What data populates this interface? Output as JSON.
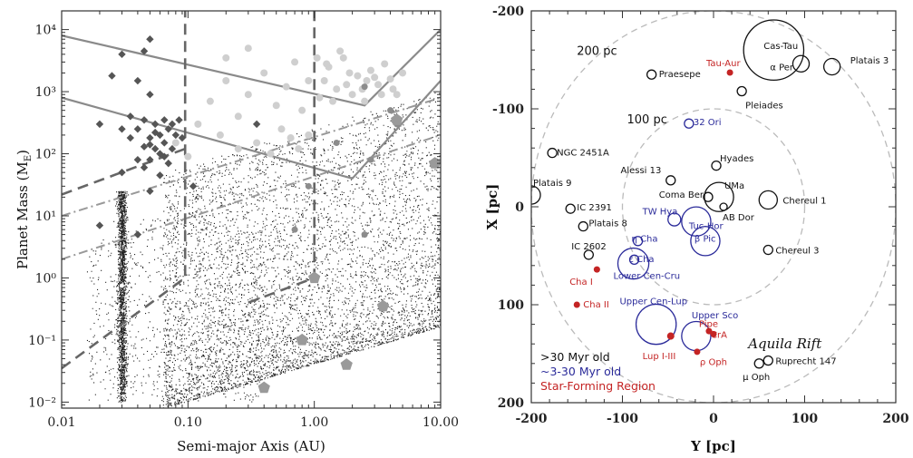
{
  "chart_data": [
    {
      "type": "scatter",
      "xlabel": "Semi-major Axis (AU)",
      "ylabel": "Planet Mass (M_E)",
      "xscale": "log",
      "yscale": "log",
      "xlim": [
        0.01,
        10
      ],
      "ylim": [
        0.008,
        20000
      ],
      "xticks": [
        {
          "v": 0.01,
          "label": "0.01"
        },
        {
          "v": 0.1,
          "label": "0.10"
        },
        {
          "v": 1,
          "label": "1.00"
        },
        {
          "v": 10,
          "label": "10.00"
        }
      ],
      "yticks": [
        {
          "v": 0.01,
          "label": "10⁻²"
        },
        {
          "v": 0.1,
          "label": "10⁻¹"
        },
        {
          "v": 1,
          "label": "10⁰"
        },
        {
          "v": 10,
          "label": "10¹"
        },
        {
          "v": 100,
          "label": "10²"
        },
        {
          "v": 1000,
          "label": "10³"
        },
        {
          "v": 10000,
          "label": "10⁴"
        }
      ],
      "known_planets_diamonds": [
        [
          0.03,
          4000
        ],
        [
          0.045,
          4500
        ],
        [
          0.05,
          7000
        ],
        [
          0.025,
          1800
        ],
        [
          0.04,
          1500
        ],
        [
          0.05,
          900
        ],
        [
          0.02,
          300
        ],
        [
          0.035,
          400
        ],
        [
          0.045,
          350
        ],
        [
          0.055,
          300
        ],
        [
          0.06,
          200
        ],
        [
          0.04,
          250
        ],
        [
          0.05,
          180
        ],
        [
          0.065,
          150
        ],
        [
          0.07,
          250
        ],
        [
          0.045,
          130
        ],
        [
          0.055,
          120
        ],
        [
          0.06,
          100
        ],
        [
          0.035,
          180
        ],
        [
          0.075,
          120
        ],
        [
          0.08,
          200
        ],
        [
          0.03,
          250
        ],
        [
          0.05,
          80
        ],
        [
          0.065,
          90
        ],
        [
          0.085,
          350
        ],
        [
          0.09,
          180
        ],
        [
          0.045,
          60
        ],
        [
          0.055,
          220
        ],
        [
          0.07,
          70
        ],
        [
          0.35,
          300
        ],
        [
          0.02,
          7
        ],
        [
          0.04,
          5
        ],
        [
          0.05,
          25
        ],
        [
          0.06,
          45
        ],
        [
          0.11,
          30
        ],
        [
          0.03,
          50
        ],
        [
          0.075,
          300
        ],
        [
          0.04,
          80
        ],
        [
          0.065,
          350
        ],
        [
          0.05,
          140
        ]
      ],
      "simulated_light": [
        [
          0.12,
          300
        ],
        [
          0.15,
          700
        ],
        [
          0.2,
          1500
        ],
        [
          0.25,
          400
        ],
        [
          0.3,
          900
        ],
        [
          0.4,
          2000
        ],
        [
          0.5,
          600
        ],
        [
          0.6,
          1200
        ],
        [
          0.7,
          3000
        ],
        [
          0.8,
          500
        ],
        [
          0.9,
          1500
        ],
        [
          1.1,
          800
        ],
        [
          1.3,
          2500
        ],
        [
          1.5,
          1100
        ],
        [
          1.7,
          3500
        ],
        [
          2.0,
          900
        ],
        [
          2.2,
          1800
        ],
        [
          2.5,
          700
        ],
        [
          2.8,
          2200
        ],
        [
          3.2,
          1300
        ],
        [
          3.6,
          2800
        ],
        [
          4.0,
          1600
        ],
        [
          4.5,
          900
        ],
        [
          5.0,
          2000
        ],
        [
          1.2,
          1500
        ],
        [
          1.4,
          700
        ],
        [
          1.8,
          1300
        ],
        [
          2.4,
          1100
        ],
        [
          3.0,
          1700
        ],
        [
          1.6,
          4500
        ],
        [
          0.08,
          150
        ],
        [
          0.1,
          90
        ],
        [
          0.18,
          200
        ],
        [
          0.25,
          120
        ],
        [
          0.35,
          150
        ],
        [
          0.45,
          100
        ],
        [
          0.55,
          250
        ],
        [
          0.65,
          180
        ],
        [
          0.75,
          120
        ],
        [
          0.9,
          200
        ],
        [
          1.05,
          3500
        ],
        [
          1.25,
          2800
        ],
        [
          0.3,
          5000
        ],
        [
          0.2,
          3500
        ],
        [
          1.9,
          2000
        ],
        [
          2.6,
          1500
        ],
        [
          3.4,
          900
        ],
        [
          4.2,
          1100
        ]
      ],
      "simulated_dark": [
        [
          2.5,
          1200
        ],
        [
          4.0,
          500
        ],
        [
          2.8,
          80
        ],
        [
          0.9,
          30
        ],
        [
          1.5,
          150
        ],
        [
          4.5,
          300
        ],
        [
          0.7,
          6
        ],
        [
          2.5,
          5
        ]
      ],
      "simulated_large": [
        [
          1.0,
          1.0
        ],
        [
          0.4,
          0.017
        ],
        [
          0.8,
          0.1
        ],
        [
          1.8,
          0.04
        ],
        [
          3.5,
          0.35
        ],
        [
          9,
          70
        ],
        [
          4.5,
          350
        ]
      ],
      "limit_solid_upper": [
        [
          0.01,
          8000
        ],
        [
          2.5,
          600
        ],
        [
          10,
          10000
        ]
      ],
      "limit_solid_lower": [
        [
          0.01,
          800
        ],
        [
          2.0,
          40
        ],
        [
          10,
          1500
        ]
      ],
      "limit_dashdot_upper": [
        [
          0.01,
          10
        ],
        [
          10,
          800
        ]
      ],
      "limit_dashdot_lower": [
        [
          0.01,
          2.0
        ],
        [
          10,
          200
        ]
      ],
      "limit_dashed_left": [
        [
          0.01,
          0.035
        ],
        [
          0.095,
          1.0
        ],
        [
          0.095,
          20000
        ]
      ],
      "limit_dashed_mid": [
        [
          0.01,
          22
        ],
        [
          0.095,
          120
        ]
      ],
      "limit_dashed_right": [
        [
          0.3,
          0.4
        ],
        [
          1.0,
          1.0
        ],
        [
          1.0,
          20000
        ]
      ]
    },
    {
      "type": "scatter",
      "xlabel": "Y [pc]",
      "ylabel": "X [pc]",
      "xlim": [
        -200,
        200
      ],
      "ylim": [
        200,
        -200
      ],
      "xticks": [
        -200,
        -100,
        0,
        100,
        200
      ],
      "yticks": [
        -200,
        -100,
        0,
        100,
        200
      ],
      "distance_rings": [
        {
          "r": 200,
          "label": "200 pc",
          "label_x": -150,
          "label_y": -155
        },
        {
          "r": 100,
          "label": "100 pc",
          "label_x": -95,
          "label_y": -85
        }
      ],
      "regions": [
        {
          "name": "Cas-Tau",
          "x": 66,
          "y": -160,
          "r": 33,
          "class": "old",
          "lx": 55,
          "ly": -165
        },
        {
          "name": "α Per",
          "x": 96,
          "y": -146,
          "r": 9,
          "class": "old",
          "lx": 62,
          "ly": -143
        },
        {
          "name": "Platais 3",
          "x": 130,
          "y": -143,
          "r": 9,
          "class": "old",
          "lx": 150,
          "ly": -150
        },
        {
          "name": "Praesepe",
          "x": -68,
          "y": -135,
          "r": 5,
          "class": "old",
          "lx": -60,
          "ly": -136
        },
        {
          "name": "Pleiades",
          "x": 31,
          "y": -118,
          "r": 5,
          "class": "old",
          "lx": 35,
          "ly": -104
        },
        {
          "name": "Tau-Aur",
          "x": 18,
          "y": -137,
          "r": 3.5,
          "class": "sfr",
          "lx": -8,
          "ly": -147
        },
        {
          "name": "32 Ori",
          "x": -27,
          "y": -85,
          "r": 5,
          "class": "young",
          "lx": -22,
          "ly": -87
        },
        {
          "name": "NGC 2451A",
          "x": -177,
          "y": -55,
          "r": 5,
          "class": "old",
          "lx": -172,
          "ly": -56
        },
        {
          "name": "Hyades",
          "x": 3,
          "y": -42,
          "r": 5,
          "class": "old",
          "lx": 7,
          "ly": -50
        },
        {
          "name": "Alessi 13",
          "x": -47,
          "y": -27,
          "r": 5,
          "class": "old",
          "lx": -102,
          "ly": -38
        },
        {
          "name": "Coma Ber",
          "x": -6,
          "y": -10,
          "r": 5,
          "class": "old",
          "lx": -60,
          "ly": -13
        },
        {
          "name": "UMa",
          "x": 6,
          "y": -10,
          "r": 16,
          "class": "old",
          "lx": 12,
          "ly": -22
        },
        {
          "name": "AB Dor",
          "x": 11,
          "y": 0,
          "r": 4,
          "class": "old",
          "lx": 10,
          "ly": 10
        },
        {
          "name": "Chereul 1",
          "x": 60,
          "y": -7,
          "r": 10,
          "class": "old",
          "lx": 76,
          "ly": -7
        },
        {
          "name": "Platais 9",
          "x": -200,
          "y": -12,
          "r": 10,
          "class": "old",
          "lx": -198,
          "ly": -25
        },
        {
          "name": "IC 2391",
          "x": -157,
          "y": 2,
          "r": 5,
          "class": "old",
          "lx": -150,
          "ly": 0
        },
        {
          "name": "Platais 8",
          "x": -143,
          "y": 20,
          "r": 5,
          "class": "old",
          "lx": -137,
          "ly": 16
        },
        {
          "name": "TW Hya",
          "x": -43,
          "y": 13,
          "r": 7,
          "class": "young",
          "lx": -78,
          "ly": 4
        },
        {
          "name": "Tuc-Hor",
          "x": -19,
          "y": 15,
          "r": 16,
          "class": "young",
          "lx": -27,
          "ly": 19
        },
        {
          "name": "β Pic",
          "x": -9,
          "y": 35,
          "r": 16,
          "class": "young",
          "lx": -21,
          "ly": 32
        },
        {
          "name": "Chereul 3",
          "x": 60,
          "y": 44,
          "r": 5,
          "class": "old",
          "lx": 68,
          "ly": 44
        },
        {
          "name": "IC 2602",
          "x": -137,
          "y": 49,
          "r": 5,
          "class": "old",
          "lx": -156,
          "ly": 40
        },
        {
          "name": "η Cha",
          "x": -83,
          "y": 35,
          "r": 5,
          "class": "young",
          "lx": -90,
          "ly": 32
        },
        {
          "name": "ε Cha",
          "x": -87,
          "y": 54,
          "r": 5,
          "class": "young",
          "lx": -93,
          "ly": 53
        },
        {
          "name": "Lower Cen-Cru",
          "x": -88,
          "y": 58,
          "r": 17,
          "class": "young",
          "lx": -110,
          "ly": 70
        },
        {
          "name": "Cha I",
          "x": -128,
          "y": 64,
          "r": 3.5,
          "class": "sfr",
          "lx": -158,
          "ly": 76
        },
        {
          "name": "Cha II",
          "x": -150,
          "y": 100,
          "r": 3.5,
          "class": "sfr",
          "lx": -143,
          "ly": 99
        },
        {
          "name": "Upper Cen-Lup",
          "x": -63,
          "y": 120,
          "r": 22,
          "class": "young",
          "lx": -103,
          "ly": 96
        },
        {
          "name": "Upper Sco",
          "x": -19,
          "y": 132,
          "r": 16,
          "class": "young",
          "lx": -24,
          "ly": 110
        },
        {
          "name": "Lup I-III",
          "x": -47,
          "y": 132,
          "r": 4,
          "class": "sfr",
          "lx": -78,
          "ly": 152
        },
        {
          "name": "Pipe",
          "x": -5,
          "y": 127,
          "r": 3.5,
          "class": "sfr",
          "lx": -16,
          "ly": 119
        },
        {
          "name": "CrA",
          "x": 0,
          "y": 130,
          "r": 3.5,
          "class": "sfr",
          "lx": -3,
          "ly": 130
        },
        {
          "name": "ρ Oph",
          "x": -18,
          "y": 148,
          "r": 3.5,
          "class": "sfr",
          "lx": -15,
          "ly": 158
        },
        {
          "name": "Ruprecht 147",
          "x": 60,
          "y": 157,
          "r": 5,
          "class": "old",
          "lx": 68,
          "ly": 157
        },
        {
          "name": "μ Oph",
          "x": 50,
          "y": 160,
          "r": 5,
          "class": "old",
          "lx": 32,
          "ly": 173
        }
      ],
      "aquila_rift": {
        "text": "Aquila Rift",
        "x": 38,
        "y": 140
      },
      "legend": [
        {
          "label": ">30 Myr old",
          "color": "#111111"
        },
        {
          "label": "~3-30 Myr old",
          "color": "#2b2b9a"
        },
        {
          "label": "Star-Forming Region",
          "color": "#c42424"
        }
      ],
      "colors": {
        "old": "#111111",
        "young": "#2b2b9a",
        "sfr": "#c42424",
        "ring": "#bbbbbb"
      }
    }
  ]
}
